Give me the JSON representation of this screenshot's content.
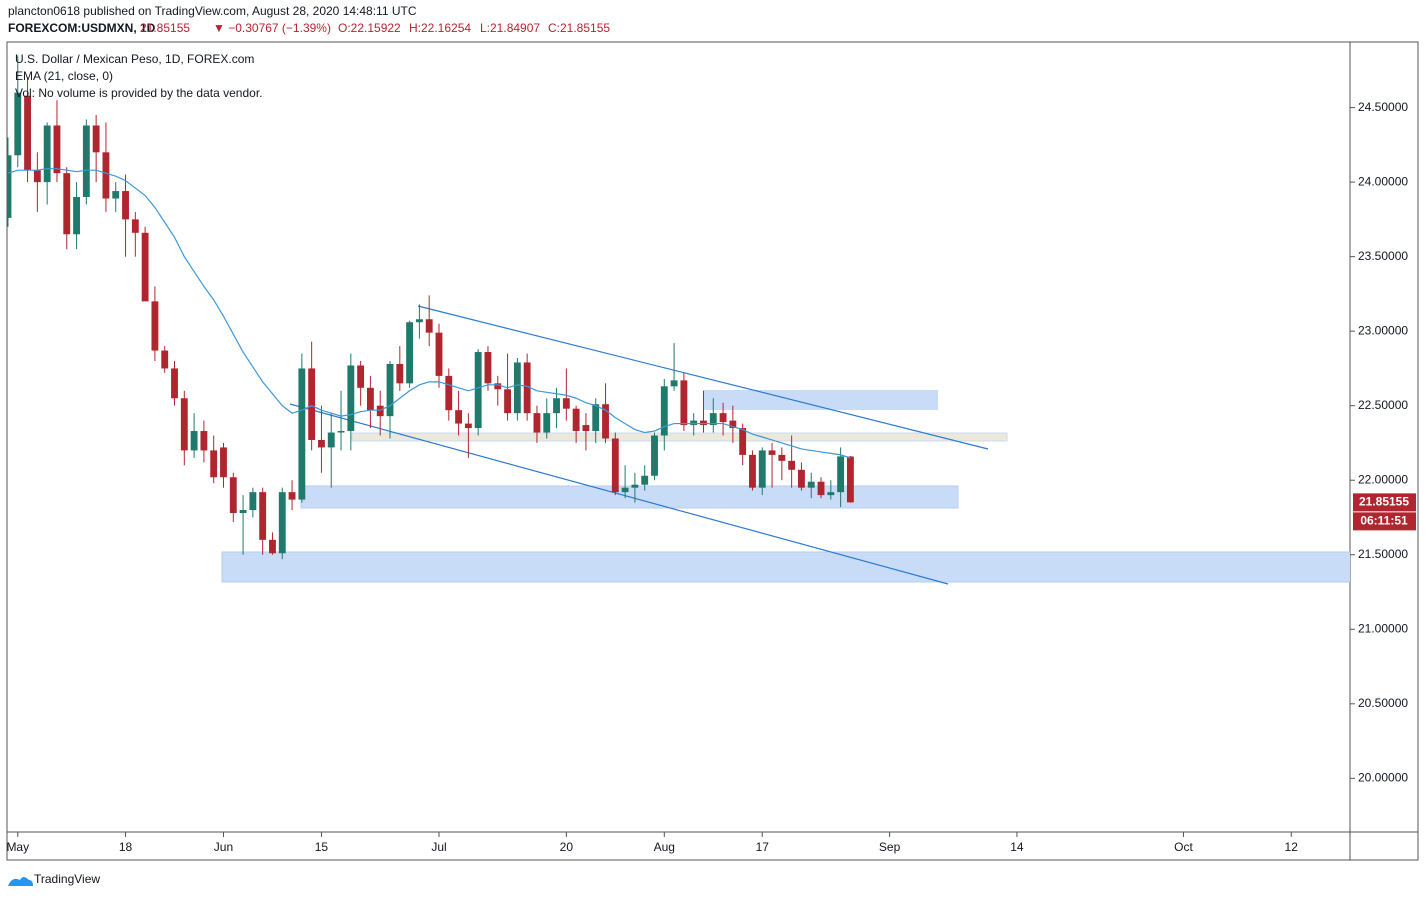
{
  "header": {
    "publisher": "plancton0618 published on TradingView.com, August 28, 2020 14:48:11 UTC",
    "symbol": "FOREXCOM:USDMXN, 1D",
    "last": "21.85155",
    "change": "▼ −0.30767 (−1.39%)",
    "open": "O:22.15922",
    "high": "H:22.16254",
    "low": "L:21.84907",
    "close": "C:21.85155"
  },
  "legend": {
    "title": "U.S. Dollar / Mexican Peso, 1D, FOREX.com",
    "ema": "EMA (21, close, 0)",
    "volume": "Vol: No volume is provided by the data vendor."
  },
  "footer": {
    "brand": "TradingView"
  },
  "chart_data": {
    "type": "candlestick",
    "xlim": [
      -0.1,
      137
    ],
    "ylim": [
      19.64,
      24.94
    ],
    "xticks": [
      {
        "value": 1,
        "label": "May"
      },
      {
        "value": 12,
        "label": "18"
      },
      {
        "value": 22,
        "label": "Jun"
      },
      {
        "value": 32,
        "label": "15"
      },
      {
        "value": 44,
        "label": "Jul"
      },
      {
        "value": 57,
        "label": "20"
      },
      {
        "value": 67,
        "label": "Aug"
      },
      {
        "value": 77,
        "label": "17"
      },
      {
        "value": 90,
        "label": "Sep"
      },
      {
        "value": 103,
        "label": "14"
      },
      {
        "value": 120,
        "label": "Oct"
      },
      {
        "value": 131,
        "label": "12"
      }
    ],
    "yticks": [
      {
        "value": 20,
        "label": "20.00000"
      },
      {
        "value": 20.5,
        "label": "20.50000"
      },
      {
        "value": 21,
        "label": "21.00000"
      },
      {
        "value": 21.5,
        "label": "21.50000"
      },
      {
        "value": 22,
        "label": "22.00000"
      },
      {
        "value": 22.5,
        "label": "22.50000"
      },
      {
        "value": 23,
        "label": "23.00000"
      },
      {
        "value": 23.5,
        "label": "23.50000"
      },
      {
        "value": 24,
        "label": "24.00000"
      },
      {
        "value": 24.5,
        "label": "24.50000"
      }
    ],
    "up_color": "#1f7a6b",
    "down_color": "#b0262f",
    "open": [
      23.76,
      24.18,
      24.58,
      24.08,
      24.0,
      24.38,
      24.06,
      23.65,
      23.9,
      24.38,
      24.2,
      23.89,
      23.94,
      23.75,
      23.66,
      23.2,
      22.87,
      22.75,
      22.55,
      22.2,
      22.33,
      22.2,
      22.22,
      22.02,
      21.78,
      21.8,
      21.92,
      21.6,
      21.51,
      21.92,
      21.87,
      22.75,
      22.27,
      22.22,
      22.32,
      22.33,
      22.77,
      22.62,
      22.5,
      22.43,
      22.78,
      22.65,
      23.06,
      23.08,
      22.99,
      22.7,
      22.47,
      22.38,
      22.35,
      22.86,
      22.65,
      22.61,
      22.45,
      22.79,
      22.45,
      22.32,
      22.45,
      22.55,
      22.48,
      22.37,
      22.33,
      22.51,
      22.28,
      21.92,
      21.95,
      21.97,
      22.03,
      22.3,
      22.63,
      22.67,
      22.37,
      22.4,
      22.37,
      22.45,
      22.4,
      22.35,
      22.17,
      21.95,
      22.2,
      22.17,
      22.13,
      22.07,
      21.95,
      21.99,
      21.9,
      21.92,
      22.15922
    ],
    "high": [
      24.3,
      24.85,
      24.7,
      24.2,
      24.4,
      24.55,
      24.1,
      24.0,
      24.42,
      24.45,
      24.4,
      24.0,
      24.05,
      23.8,
      23.7,
      23.3,
      22.9,
      22.8,
      22.6,
      22.45,
      22.4,
      22.3,
      22.25,
      22.05,
      21.9,
      21.95,
      21.95,
      21.65,
      21.95,
      22.0,
      22.85,
      22.93,
      22.5,
      22.45,
      22.6,
      22.85,
      22.8,
      22.7,
      22.6,
      22.8,
      22.9,
      23.07,
      23.18,
      23.24,
      23.05,
      22.75,
      22.6,
      22.45,
      22.88,
      22.9,
      22.7,
      22.85,
      22.82,
      22.85,
      22.5,
      22.55,
      22.62,
      22.75,
      22.5,
      22.45,
      22.55,
      22.65,
      22.32,
      22.1,
      22.05,
      22.1,
      22.32,
      22.68,
      22.92,
      22.72,
      22.45,
      22.6,
      22.55,
      22.52,
      22.5,
      22.38,
      22.2,
      22.22,
      22.25,
      22.22,
      22.3,
      22.12,
      22.05,
      22.02,
      22.0,
      22.22,
      22.16254
    ],
    "low": [
      23.7,
      24.1,
      24.0,
      23.8,
      23.85,
      24.0,
      23.55,
      23.55,
      23.85,
      24.0,
      23.8,
      23.8,
      23.5,
      23.5,
      23.2,
      22.8,
      22.72,
      22.5,
      22.1,
      22.15,
      22.12,
      21.98,
      21.95,
      21.72,
      21.5,
      21.75,
      21.5,
      21.5,
      21.47,
      21.8,
      21.85,
      22.2,
      22.05,
      21.95,
      22.2,
      22.2,
      22.5,
      22.35,
      22.3,
      22.28,
      22.6,
      22.62,
      22.95,
      22.9,
      22.62,
      22.4,
      22.3,
      22.15,
      22.3,
      22.6,
      22.5,
      22.4,
      22.4,
      22.4,
      22.25,
      22.28,
      22.35,
      22.4,
      22.25,
      22.2,
      22.25,
      22.25,
      21.9,
      21.88,
      21.85,
      21.93,
      22.0,
      22.2,
      22.6,
      22.33,
      22.3,
      22.32,
      22.32,
      22.3,
      22.25,
      22.1,
      21.93,
      21.9,
      21.95,
      22.0,
      21.95,
      21.93,
      21.88,
      21.88,
      21.87,
      21.82,
      21.84907
    ],
    "close": [
      24.18,
      24.6,
      24.08,
      24.0,
      24.38,
      24.06,
      23.65,
      23.9,
      24.38,
      24.2,
      23.89,
      23.94,
      23.75,
      23.66,
      23.2,
      22.87,
      22.75,
      22.55,
      22.2,
      22.33,
      22.2,
      22.02,
      22.02,
      21.78,
      21.8,
      21.92,
      21.6,
      21.51,
      21.92,
      21.87,
      22.75,
      22.27,
      22.22,
      22.32,
      22.33,
      22.77,
      22.62,
      22.47,
      22.43,
      22.78,
      22.65,
      23.06,
      23.08,
      22.99,
      22.7,
      22.47,
      22.38,
      22.35,
      22.86,
      22.65,
      22.61,
      22.45,
      22.79,
      22.45,
      22.32,
      22.45,
      22.55,
      22.48,
      22.33,
      22.33,
      22.51,
      22.28,
      21.92,
      21.95,
      21.97,
      22.03,
      22.3,
      22.63,
      22.67,
      22.37,
      22.4,
      22.37,
      22.45,
      22.39,
      22.35,
      22.17,
      21.95,
      22.2,
      22.17,
      22.13,
      22.07,
      21.95,
      21.99,
      21.9,
      21.92,
      22.16,
      21.85155
    ],
    "ema": {
      "name": "EMA (21, close, 0)",
      "color": "#3d97d6",
      "values": [
        24.06,
        24.08,
        24.08,
        24.08,
        24.09,
        24.09,
        24.08,
        24.07,
        24.08,
        24.08,
        24.06,
        24.04,
        24.01,
        23.96,
        23.91,
        23.83,
        23.73,
        23.63,
        23.5,
        23.4,
        23.3,
        23.21,
        23.1,
        22.98,
        22.86,
        22.76,
        22.66,
        22.58,
        22.5,
        22.45,
        22.47,
        22.5,
        22.47,
        22.45,
        22.43,
        22.44,
        22.46,
        22.47,
        22.47,
        22.5,
        22.55,
        22.6,
        22.64,
        22.66,
        22.66,
        22.64,
        22.62,
        22.6,
        22.62,
        22.64,
        22.64,
        22.62,
        22.64,
        22.63,
        22.6,
        22.59,
        22.58,
        22.57,
        22.55,
        22.52,
        22.5,
        22.47,
        22.42,
        22.38,
        22.34,
        22.32,
        22.33,
        22.36,
        22.38,
        22.38,
        22.38,
        22.38,
        22.38,
        22.38,
        22.36,
        22.34,
        22.31,
        22.29,
        22.27,
        22.25,
        22.23,
        22.21,
        22.2,
        22.19,
        22.18,
        22.17,
        22.15
      ]
    },
    "last_price_label": "21.85155",
    "countdown": "06:11:51"
  }
}
